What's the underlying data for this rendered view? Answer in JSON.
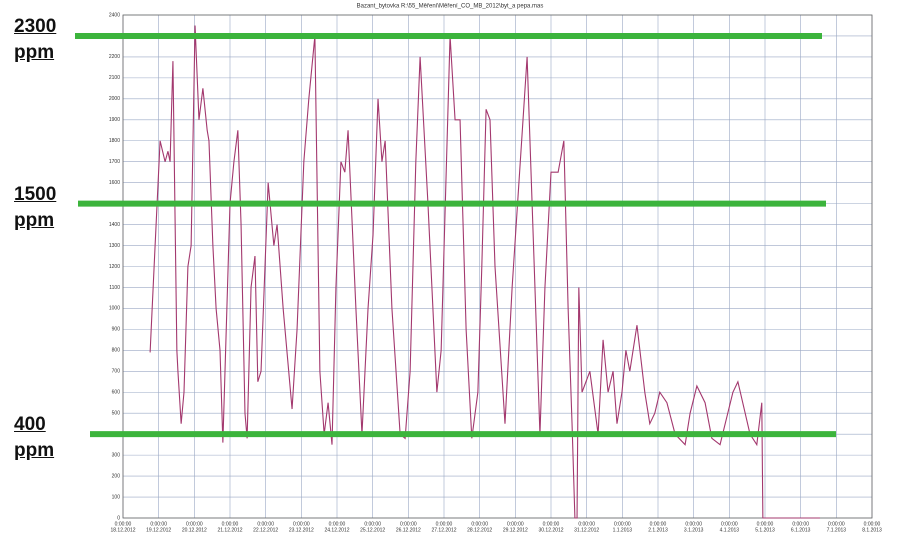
{
  "chart_data": {
    "type": "line",
    "title": "Bazant_bytovka   R:\\55_Měření\\Měření_CO_MB_2012\\byt_a pepa.mas",
    "color": "#a3386e",
    "x": [
      0.76,
      0.9,
      1.04,
      1.18,
      1.26,
      1.32,
      1.4,
      1.51,
      1.54,
      1.63,
      1.71,
      1.82,
      1.91,
      2.02,
      2.13,
      2.24,
      2.36,
      2.41,
      2.52,
      2.61,
      2.72,
      2.8,
      3.0,
      3.11,
      3.22,
      3.31,
      3.42,
      3.48,
      3.59,
      3.7,
      3.78,
      3.87,
      4.07,
      4.23,
      4.32,
      4.49,
      4.74,
      4.88,
      5.07,
      5.21,
      5.38,
      5.52,
      5.64,
      5.75,
      5.86,
      5.97,
      6.11,
      6.22,
      6.31,
      6.53,
      6.7,
      6.87,
      7.01,
      7.15,
      7.26,
      7.35,
      7.54,
      7.77,
      7.91,
      8.05,
      8.21,
      8.33,
      8.55,
      8.8,
      8.92,
      9.17,
      9.31,
      9.45,
      9.62,
      9.78,
      9.95,
      10.06,
      10.18,
      10.29,
      10.43,
      10.71,
      10.91,
      11.33,
      11.47,
      11.69,
      11.83,
      12.0,
      12.2,
      12.36,
      12.48,
      12.59,
      12.67,
      12.73,
      12.78,
      12.87,
      13.09,
      13.32,
      13.46,
      13.6,
      13.74,
      13.85,
      13.99,
      14.1,
      14.21,
      14.41,
      14.63,
      14.77,
      14.91,
      15.05,
      15.25,
      15.48,
      15.76,
      15.9,
      16.09,
      16.32,
      16.51,
      16.74,
      17.1,
      17.24,
      17.58,
      17.77,
      17.91,
      17.94,
      19.54
    ],
    "values": [
      790,
      1300,
      1800,
      1700,
      1750,
      1700,
      2180,
      800,
      700,
      450,
      600,
      1200,
      1300,
      2350,
      1900,
      2050,
      1850,
      1800,
      1300,
      1000,
      800,
      360,
      1500,
      1700,
      1850,
      1400,
      500,
      380,
      1100,
      1250,
      650,
      700,
      1600,
      1300,
      1400,
      1000,
      520,
      900,
      1700,
      2000,
      2300,
      700,
      400,
      550,
      350,
      1100,
      1700,
      1650,
      1850,
      1000,
      400,
      1000,
      1350,
      2000,
      1700,
      1800,
      1000,
      400,
      380,
      700,
      1700,
      2200,
      1500,
      600,
      800,
      2300,
      1900,
      1900,
      900,
      380,
      600,
      1200,
      1950,
      1900,
      1200,
      450,
      1100,
      2200,
      1500,
      400,
      1100,
      1650,
      1650,
      1800,
      1000,
      450,
      0,
      0,
      1100,
      600,
      700,
      400,
      850,
      600,
      700,
      450,
      600,
      800,
      700,
      920,
      600,
      450,
      500,
      600,
      550,
      400,
      350,
      500,
      630,
      550,
      380,
      350,
      600,
      650,
      400,
      350,
      550,
      0,
      0
    ],
    "xlim": [
      0,
      21
    ],
    "xticks": [
      {
        "value": 0,
        "label": "18.12.2012"
      },
      {
        "value": 1,
        "label": "19.12.2012"
      },
      {
        "value": 2,
        "label": "20.12.2012"
      },
      {
        "value": 3,
        "label": "21.12.2012"
      },
      {
        "value": 4,
        "label": "22.12.2012"
      },
      {
        "value": 5,
        "label": "23.12.2012"
      },
      {
        "value": 6,
        "label": "24.12.2012"
      },
      {
        "value": 7,
        "label": "25.12.2012"
      },
      {
        "value": 8,
        "label": "26.12.2012"
      },
      {
        "value": 9,
        "label": "27.12.2012"
      },
      {
        "value": 10,
        "label": "28.12.2012"
      },
      {
        "value": 11,
        "label": "29.12.2012"
      },
      {
        "value": 12,
        "label": "30.12.2012"
      },
      {
        "value": 13,
        "label": "31.12.2012"
      },
      {
        "value": 14,
        "label": "1.1.2013"
      },
      {
        "value": 15,
        "label": "2.1.2013"
      },
      {
        "value": 16,
        "label": "3.1.2013"
      },
      {
        "value": 17,
        "label": "4.1.2013"
      },
      {
        "value": 18,
        "label": "5.1.2013"
      },
      {
        "value": 19,
        "label": "6.1.2013"
      },
      {
        "value": 20,
        "label": "7.1.2013"
      },
      {
        "value": 21,
        "label": "8.1.2013"
      }
    ],
    "xtick_time_label": "0:00:00",
    "ylim": [
      0,
      2400
    ],
    "yticks": [
      0,
      100,
      200,
      300,
      400,
      500,
      600,
      700,
      800,
      900,
      1000,
      1100,
      1200,
      1300,
      1400,
      1500,
      1600,
      1700,
      1800,
      1900,
      2000,
      2100,
      2200,
      2300,
      2400
    ],
    "grid": true,
    "thresholds": [
      {
        "value": 2300,
        "label": "2300\nppm"
      },
      {
        "value": 1500,
        "label": "1500\nppm"
      },
      {
        "value": 400,
        "label": "400\nppm"
      }
    ],
    "threshold_color": "#3cb43c"
  }
}
